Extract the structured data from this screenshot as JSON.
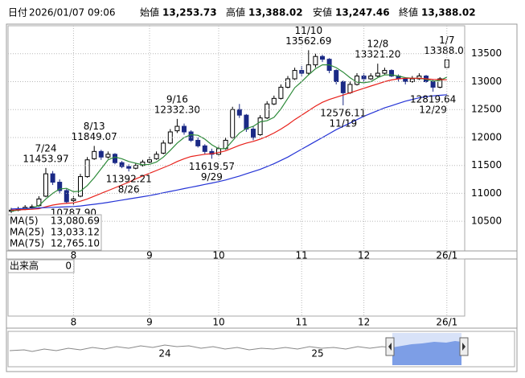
{
  "info": [
    {
      "label": "日付",
      "value": "2026/01/07 09:06"
    },
    {
      "label": "始値",
      "value": "13,253.73"
    },
    {
      "label": "高値",
      "value": "13,388.02"
    },
    {
      "label": "安値",
      "value": "13,247.46"
    },
    {
      "label": "終値",
      "value": "13,388.02"
    }
  ],
  "chart_data": {
    "type": "candlestick",
    "categories": [
      null,
      null,
      null,
      null,
      null,
      null,
      null,
      null,
      null,
      "8",
      null,
      null,
      null,
      null,
      null,
      null,
      null,
      null,
      null,
      null,
      "9",
      null,
      null,
      null,
      null,
      null,
      null,
      null,
      null,
      null,
      "10",
      null,
      null,
      null,
      null,
      null,
      null,
      null,
      null,
      null,
      null,
      null,
      "11",
      null,
      null,
      null,
      null,
      null,
      null,
      null,
      null,
      "12",
      null,
      null,
      null,
      null,
      null,
      null,
      null,
      null,
      null,
      null,
      null,
      "26/1"
    ],
    "open": [
      10680,
      10700,
      10720,
      10760,
      10780,
      10950,
      11350,
      11200,
      11050,
      10870,
      10950,
      11300,
      11620,
      11750,
      11650,
      11700,
      11550,
      11480,
      11450,
      11500,
      11560,
      11620,
      11720,
      11900,
      12120,
      12200,
      12100,
      11950,
      11850,
      11750,
      11700,
      11800,
      12000,
      12500,
      12400,
      12150,
      12050,
      12350,
      12600,
      12700,
      12900,
      13050,
      13200,
      13150,
      13300,
      13450,
      13400,
      13200,
      13000,
      12800,
      12950,
      13100,
      13050,
      13100,
      13150,
      13200,
      13100,
      13050,
      13000,
      13050,
      13100,
      13000,
      12900,
      13253.73
    ],
    "high": [
      10740,
      10760,
      10790,
      10800,
      10950,
      11453.97,
      11400,
      11250,
      11080,
      10950,
      11350,
      11650,
      11849.07,
      11780,
      11750,
      11720,
      11580,
      11520,
      11540,
      11600,
      11650,
      11750,
      11950,
      12150,
      12332.3,
      12250,
      12130,
      12000,
      11880,
      11800,
      11850,
      12000,
      12550,
      12600,
      12420,
      12200,
      12400,
      12650,
      12750,
      12950,
      13100,
      13250,
      13280,
      13562.69,
      13500,
      13480,
      13420,
      13220,
      13020,
      13000,
      13150,
      13150,
      13150,
      13321.2,
      13250,
      13220,
      13130,
      13080,
      13100,
      13150,
      13120,
      13030,
      13080,
      13388.02
    ],
    "low": [
      10650,
      10680,
      10700,
      10720,
      10760,
      10930,
      11150,
      11000,
      10820,
      10787.9,
      10930,
      11280,
      11600,
      11600,
      11620,
      11520,
      11450,
      11392.21,
      11430,
      11480,
      11540,
      11600,
      11700,
      11880,
      12080,
      12050,
      11920,
      11820,
      11700,
      11619.57,
      11680,
      11780,
      11980,
      12350,
      12100,
      11950,
      12030,
      12330,
      12580,
      12680,
      12880,
      13030,
      13100,
      13120,
      13250,
      13350,
      13150,
      12950,
      12576.11,
      12780,
      12930,
      13000,
      13030,
      13080,
      13130,
      13080,
      13000,
      12950,
      12980,
      13030,
      12980,
      12819.64,
      12880,
      13247.46
    ],
    "close": [
      10700,
      10720,
      10750,
      10760,
      10900,
      11350,
      11200,
      11050,
      10850,
      10900,
      11300,
      11600,
      11750,
      11650,
      11700,
      11550,
      11480,
      11450,
      11500,
      11560,
      11600,
      11700,
      11900,
      12100,
      12200,
      12100,
      11950,
      11850,
      11750,
      11700,
      11800,
      11950,
      12500,
      12400,
      12150,
      12000,
      12350,
      12600,
      12700,
      12900,
      13050,
      13200,
      13150,
      13300,
      13450,
      13400,
      13200,
      13000,
      12800,
      12950,
      13100,
      13050,
      13100,
      13150,
      13200,
      13100,
      13050,
      13000,
      13050,
      13100,
      13000,
      12900,
      13050,
      13388.02
    ],
    "series": [
      {
        "name": "MA(5)",
        "color": "#2e8b3a",
        "legend_value": {
          "value": 13080.69,
          "label": "13,080.69"
        },
        "values": [
          10680,
          10700,
          10720,
          10740,
          10780,
          10900,
          11000,
          11080,
          11090,
          11030,
          11040,
          11140,
          11280,
          11440,
          11600,
          11650,
          11620,
          11570,
          11540,
          11510,
          11520,
          11560,
          11650,
          11770,
          11900,
          12000,
          12050,
          12040,
          11970,
          11870,
          11800,
          11800,
          11940,
          12080,
          12160,
          12200,
          12280,
          12300,
          12360,
          12510,
          12700,
          12890,
          13000,
          13120,
          13230,
          13300,
          13300,
          13250,
          13170,
          13070,
          12990,
          12980,
          13000,
          13070,
          13120,
          13120,
          13100,
          13070,
          13060,
          13060,
          13040,
          13010,
          13020,
          13080.69
        ]
      },
      {
        "name": "MA(25)",
        "color": "#e8201a",
        "legend_value": {
          "value": 13033.12,
          "label": "13,033.12"
        },
        "values": [
          10700,
          10705,
          10710,
          10715,
          10725,
          10760,
          10790,
          10810,
          10820,
          10830,
          10860,
          10900,
          10950,
          11000,
          11050,
          11100,
          11150,
          11200,
          11260,
          11310,
          11360,
          11410,
          11460,
          11510,
          11570,
          11620,
          11660,
          11680,
          11700,
          11710,
          11730,
          11760,
          11810,
          11860,
          11900,
          11930,
          11970,
          12020,
          12080,
          12150,
          12230,
          12320,
          12400,
          12480,
          12560,
          12630,
          12680,
          12720,
          12760,
          12800,
          12840,
          12880,
          12920,
          12960,
          13000,
          13030,
          13050,
          13060,
          13060,
          13060,
          13050,
          13040,
          13035,
          13033.12
        ]
      },
      {
        "name": "MA(75)",
        "color": "#2433d6",
        "legend_value": {
          "value": 12765.1,
          "label": "12,765.10"
        },
        "values": [
          10720,
          10725,
          10730,
          10735,
          10740,
          10745,
          10750,
          10755,
          10760,
          10765,
          10775,
          10790,
          10805,
          10820,
          10840,
          10860,
          10880,
          10900,
          10920,
          10940,
          10960,
          10985,
          11010,
          11035,
          11060,
          11085,
          11110,
          11135,
          11160,
          11185,
          11210,
          11240,
          11275,
          11310,
          11350,
          11390,
          11430,
          11480,
          11530,
          11590,
          11650,
          11720,
          11790,
          11860,
          11930,
          12000,
          12070,
          12140,
          12200,
          12260,
          12320,
          12380,
          12430,
          12480,
          12530,
          12570,
          12610,
          12650,
          12680,
          12710,
          12730,
          12745,
          12755,
          12765.1
        ]
      }
    ],
    "annotations": [
      {
        "date": "7/24",
        "value": 11453.97
      },
      {
        "value": 10787.9,
        "label": "10787.90"
      },
      {
        "date": "8/13",
        "value": 11849.07
      },
      {
        "date": "8/26",
        "value": 11392.21
      },
      {
        "date": "9/16",
        "value": 12332.3,
        "label": "12332.30"
      },
      {
        "date": "9/29",
        "value": 11619.57
      },
      {
        "date": "11/10",
        "value": 13562.69
      },
      {
        "date": "11/19",
        "value": 12576.11
      },
      {
        "date": "12/8",
        "value": 13321.2,
        "label": "13321.20"
      },
      {
        "date": "12/29",
        "value": 12819.64
      },
      {
        "date": "1/7",
        "value": 13388.02
      }
    ],
    "ylim": [
      9970,
      14000
    ],
    "yticks": [
      10500,
      11000,
      11500,
      12000,
      12500,
      13000,
      13500
    ],
    "grid": true
  },
  "volume": {
    "label": "出来高",
    "yticks": [
      0
    ]
  },
  "navigator": {
    "labels": [
      "24",
      "25"
    ]
  }
}
